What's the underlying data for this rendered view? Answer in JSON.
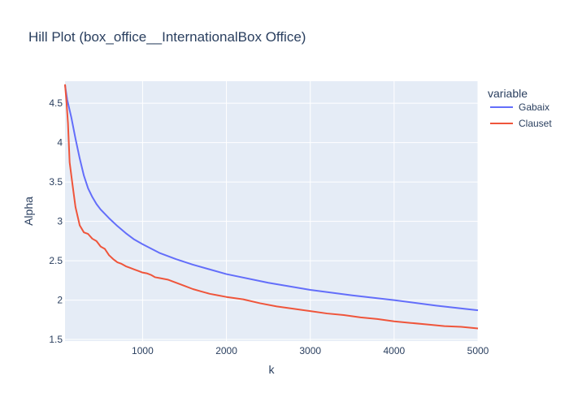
{
  "chart_data": {
    "type": "line",
    "title": "Hill Plot (box_office__InternationalBox Office)",
    "xlabel": "k",
    "ylabel": "Alpha",
    "xlim": [
      75,
      5000
    ],
    "ylim": [
      1.48,
      4.78
    ],
    "x_ticks": [
      1000,
      2000,
      3000,
      4000,
      5000
    ],
    "y_ticks": [
      1.5,
      2,
      2.5,
      3,
      3.5,
      4,
      4.5
    ],
    "grid": true,
    "legend": {
      "title": "variable",
      "position": "top-right"
    },
    "series": [
      {
        "name": "Gabaix",
        "color": "#636efa",
        "x": [
          75,
          100,
          150,
          200,
          250,
          300,
          350,
          400,
          450,
          500,
          600,
          700,
          800,
          900,
          1000,
          1200,
          1400,
          1600,
          1800,
          2000,
          2500,
          3000,
          3500,
          4000,
          4500,
          5000
        ],
        "y": [
          4.73,
          4.55,
          4.32,
          4.05,
          3.8,
          3.58,
          3.42,
          3.31,
          3.22,
          3.15,
          3.04,
          2.94,
          2.85,
          2.77,
          2.71,
          2.6,
          2.52,
          2.45,
          2.39,
          2.33,
          2.22,
          2.13,
          2.06,
          2.0,
          1.93,
          1.87
        ]
      },
      {
        "name": "Clauset",
        "color": "#ef553b",
        "x": [
          75,
          90,
          110,
          130,
          160,
          200,
          250,
          300,
          350,
          400,
          450,
          500,
          550,
          600,
          650,
          700,
          750,
          800,
          850,
          900,
          950,
          1000,
          1050,
          1100,
          1150,
          1200,
          1300,
          1400,
          1500,
          1600,
          1700,
          1800,
          1900,
          2000,
          2200,
          2400,
          2600,
          2800,
          3000,
          3200,
          3400,
          3600,
          3800,
          4000,
          4200,
          4400,
          4600,
          4800,
          5000
        ],
        "y": [
          4.74,
          4.55,
          4.25,
          3.75,
          3.5,
          3.18,
          2.95,
          2.86,
          2.84,
          2.78,
          2.75,
          2.68,
          2.65,
          2.57,
          2.52,
          2.48,
          2.46,
          2.43,
          2.41,
          2.39,
          2.37,
          2.35,
          2.34,
          2.32,
          2.29,
          2.28,
          2.26,
          2.22,
          2.18,
          2.14,
          2.11,
          2.08,
          2.06,
          2.04,
          2.01,
          1.96,
          1.92,
          1.89,
          1.86,
          1.83,
          1.81,
          1.78,
          1.76,
          1.73,
          1.71,
          1.69,
          1.67,
          1.66,
          1.64
        ]
      }
    ]
  }
}
